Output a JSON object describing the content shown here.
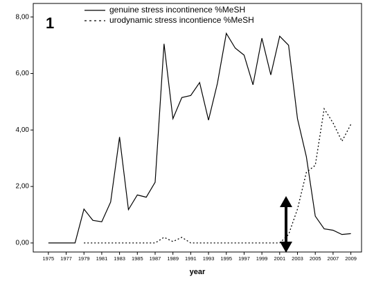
{
  "chart_data": {
    "type": "line",
    "annotation": "1",
    "x_label": "year",
    "x": [
      1975,
      1976,
      1977,
      1978,
      1979,
      1980,
      1981,
      1982,
      1983,
      1984,
      1985,
      1986,
      1987,
      1988,
      1989,
      1990,
      1991,
      1992,
      1993,
      1994,
      1995,
      1996,
      1997,
      1998,
      1999,
      2000,
      2001,
      2002,
      2003,
      2004,
      2005,
      2006,
      2007,
      2008,
      2009
    ],
    "series": [
      {
        "name": "genuine stress incontinence %MeSH",
        "color": "#000000",
        "dash": "solid",
        "values": [
          0,
          0,
          0,
          0,
          1.2,
          0.8,
          0.75,
          1.45,
          3.75,
          1.18,
          1.7,
          1.62,
          2.15,
          7.05,
          4.4,
          5.15,
          5.22,
          5.68,
          4.35,
          5.65,
          7.42,
          6.9,
          6.65,
          5.6,
          7.25,
          5.95,
          7.32,
          7.0,
          4.4,
          3.05,
          0.95,
          0.5,
          0.45,
          0.3,
          0.33
        ]
      },
      {
        "name": "urodynamic stress incontience %MeSH",
        "color": "#000000",
        "dash": "dotted",
        "values": [
          null,
          null,
          null,
          null,
          0,
          0,
          0,
          0,
          0,
          0,
          0,
          0,
          0,
          0.2,
          0.05,
          0.2,
          0,
          0,
          0,
          0,
          0,
          0,
          0,
          0,
          0,
          0,
          0,
          0.3,
          1.2,
          2.5,
          2.75,
          4.75,
          4.25,
          3.6,
          4.2
        ]
      }
    ],
    "xlim": [
      1973.3,
      2010.2
    ],
    "xticks": [
      1975,
      1977,
      1979,
      1981,
      1983,
      1985,
      1987,
      1989,
      1991,
      1993,
      1995,
      1997,
      1999,
      2001,
      2003,
      2005,
      2007,
      2009
    ],
    "ylim": [
      -0.32,
      8.48
    ],
    "yticks": [
      {
        "value": 0,
        "label": "0,00"
      },
      {
        "value": 2,
        "label": "2,00"
      },
      {
        "value": 4,
        "label": "4,00"
      },
      {
        "value": 6,
        "label": "6,00"
      },
      {
        "value": 8,
        "label": "8,00"
      }
    ]
  }
}
